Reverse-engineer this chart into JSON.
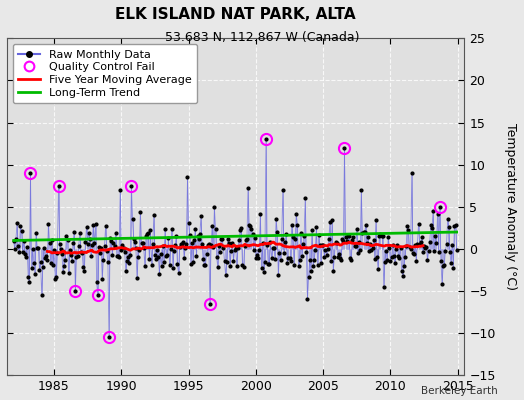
{
  "title": "ELK ISLAND NAT PARK, ALTA",
  "subtitle": "53.683 N, 112.867 W (Canada)",
  "ylabel": "Temperature Anomaly (°C)",
  "attribution": "Berkeley Earth",
  "xlim": [
    1981.5,
    2015.5
  ],
  "ylim": [
    -15,
    25
  ],
  "yticks": [
    -15,
    -10,
    -5,
    0,
    5,
    10,
    15,
    20,
    25
  ],
  "xticks": [
    1985,
    1990,
    1995,
    2000,
    2005,
    2010,
    2015
  ],
  "fig_bg_color": "#e8e8e8",
  "plot_bg_color": "#e0e0e0",
  "raw_line_color": "#6666dd",
  "raw_marker_color": "#000000",
  "qc_marker_color": "#ff00ff",
  "moving_avg_color": "#ff0000",
  "trend_color": "#00bb00",
  "grid_color": "#ffffff",
  "legend_labels": [
    "Raw Monthly Data",
    "Quality Control Fail",
    "Five Year Moving Average",
    "Long-Term Trend"
  ],
  "seed": 42,
  "start_year": 1982.0,
  "end_year": 2014.917
}
